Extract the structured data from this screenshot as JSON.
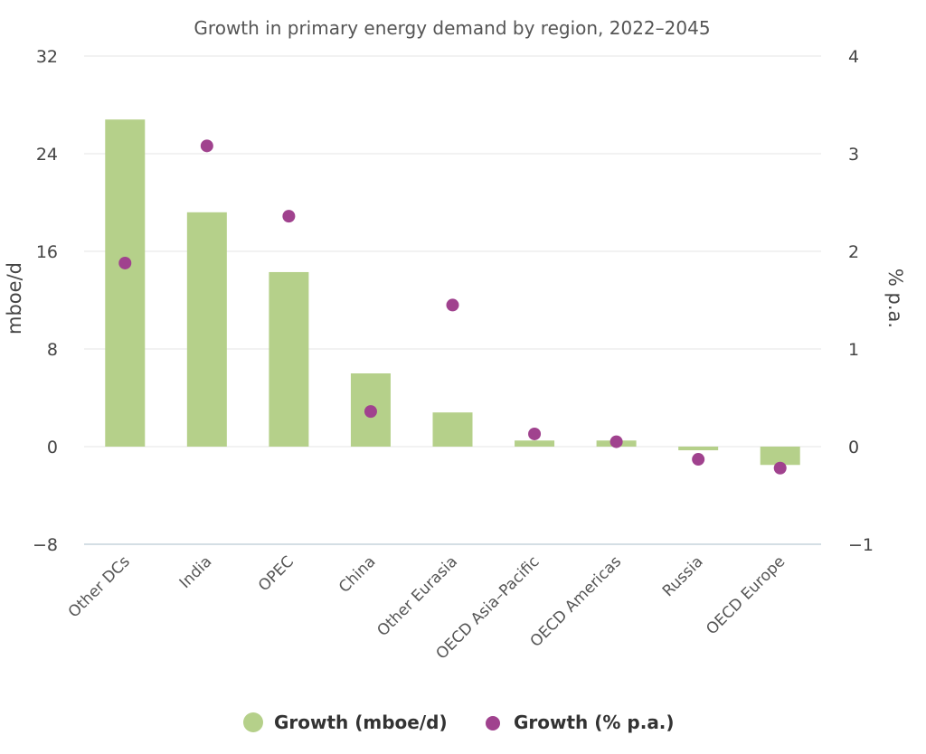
{
  "chart_data": {
    "type": "bar",
    "subtitle": "Growth in primary energy demand by region, 2022–2045",
    "categories": [
      "Other DCs",
      "India",
      "OPEC",
      "China",
      "Other Eurasia",
      "OECD Asia-Pacific",
      "OECD Americas",
      "Russia",
      "OECD Europe"
    ],
    "series": [
      {
        "name": "Growth (mboe/d)",
        "type": "bar",
        "axis": "left",
        "color": "#b5d08a",
        "values": [
          26.8,
          19.2,
          14.3,
          6.0,
          2.8,
          0.5,
          0.5,
          -0.3,
          -1.5
        ]
      },
      {
        "name": "Growth (% p.a.)",
        "type": "scatter",
        "axis": "right",
        "color": "#a0428e",
        "values": [
          1.88,
          3.08,
          2.36,
          0.36,
          1.45,
          0.13,
          0.05,
          -0.13,
          -0.22
        ]
      }
    ],
    "y_left": {
      "label": "mboe/d",
      "ylim": [
        -8,
        32
      ],
      "ticks": [
        32,
        24,
        16,
        8,
        0,
        -8
      ]
    },
    "y_right": {
      "label": "% p.a.",
      "ylim": [
        -1,
        4
      ],
      "ticks": [
        4,
        3,
        2,
        1,
        0,
        -1
      ]
    },
    "grid": true,
    "legend": "bottom-center"
  }
}
